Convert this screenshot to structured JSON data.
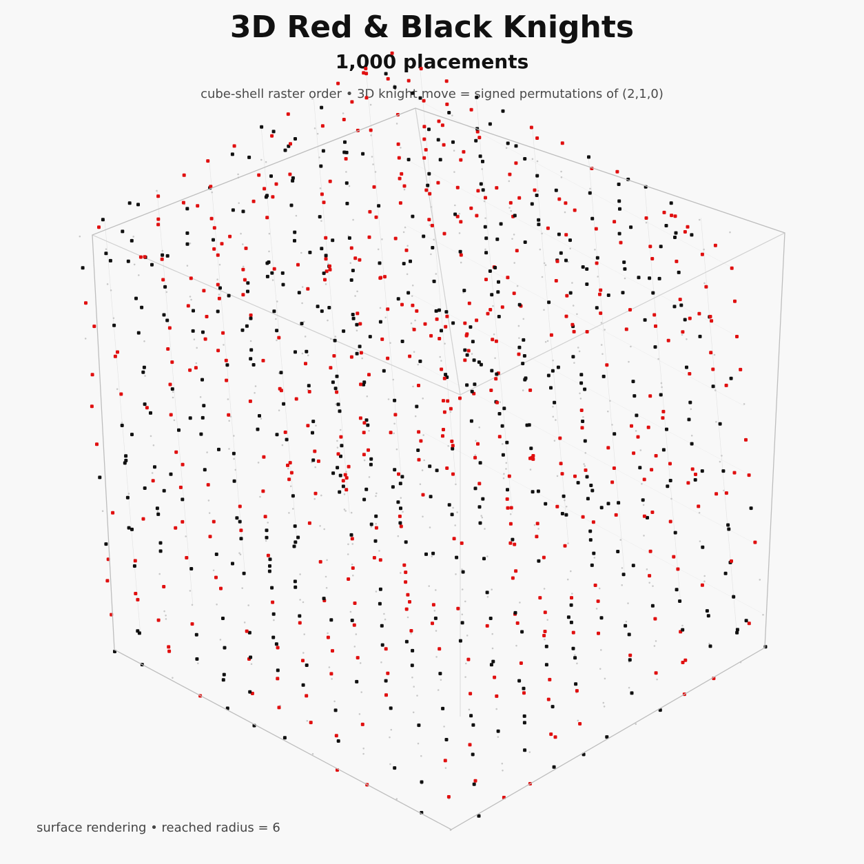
{
  "header": {
    "title": "3D Red & Black Knights",
    "subtitle": "1,000 placements",
    "caption": "cube-shell raster order • 3D knight move = signed permutations of (2,1,0)"
  },
  "footer": {
    "note": "surface rendering • reached radius = 6"
  },
  "diagram": {
    "radius": 6,
    "placements": 1000,
    "colors": {
      "background": "#f8f8f8",
      "red_knight": "#e01010",
      "black_knight": "#111111",
      "empty_cell": "#c8c8c8",
      "cube_edge": "#bdbdbd"
    }
  }
}
